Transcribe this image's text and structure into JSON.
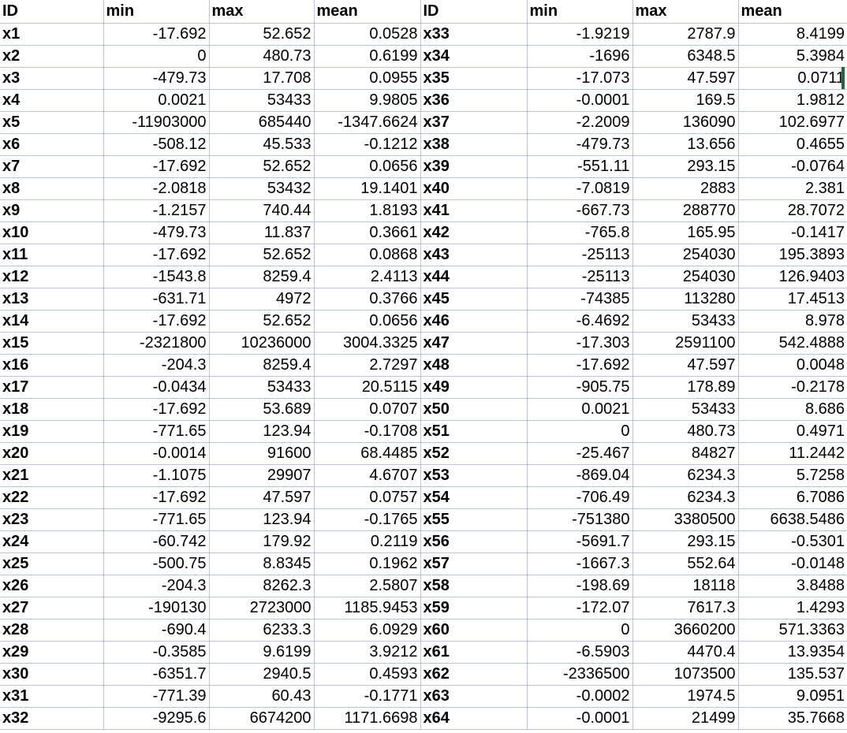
{
  "sheet": {
    "headers": [
      "ID",
      "min",
      "max",
      "mean",
      "ID",
      "min",
      "max",
      "mean"
    ],
    "rows": [
      [
        "x1",
        "-17.692",
        "52.652",
        "0.0528",
        "x33",
        "-1.9219",
        "2787.9",
        "8.4199"
      ],
      [
        "x2",
        "0",
        "480.73",
        "0.6199",
        "x34",
        "-1696",
        "6348.5",
        "5.3984"
      ],
      [
        "x3",
        "-479.73",
        "17.708",
        "0.0955",
        "x35",
        "-17.073",
        "47.597",
        "0.0711"
      ],
      [
        "x4",
        "0.0021",
        "53433",
        "9.9805",
        "x36",
        "-0.0001",
        "169.5",
        "1.9812"
      ],
      [
        "x5",
        "-11903000",
        "685440",
        "-1347.6624",
        "x37",
        "-2.2009",
        "136090",
        "102.6977"
      ],
      [
        "x6",
        "-508.12",
        "45.533",
        "-0.1212",
        "x38",
        "-479.73",
        "13.656",
        "0.4655"
      ],
      [
        "x7",
        "-17.692",
        "52.652",
        "0.0656",
        "x39",
        "-551.11",
        "293.15",
        "-0.0764"
      ],
      [
        "x8",
        "-2.0818",
        "53432",
        "19.1401",
        "x40",
        "-7.0819",
        "2883",
        "2.381"
      ],
      [
        "x9",
        "-1.2157",
        "740.44",
        "1.8193",
        "x41",
        "-667.73",
        "288770",
        "28.7072"
      ],
      [
        "x10",
        "-479.73",
        "11.837",
        "0.3661",
        "x42",
        "-765.8",
        "165.95",
        "-0.1417"
      ],
      [
        "x11",
        "-17.692",
        "52.652",
        "0.0868",
        "x43",
        "-25113",
        "254030",
        "195.3893"
      ],
      [
        "x12",
        "-1543.8",
        "8259.4",
        "2.4113",
        "x44",
        "-25113",
        "254030",
        "126.9403"
      ],
      [
        "x13",
        "-631.71",
        "4972",
        "0.3766",
        "x45",
        "-74385",
        "113280",
        "17.4513"
      ],
      [
        "x14",
        "-17.692",
        "52.652",
        "0.0656",
        "x46",
        "-6.4692",
        "53433",
        "8.978"
      ],
      [
        "x15",
        "-2321800",
        "10236000",
        "3004.3325",
        "x47",
        "-17.303",
        "2591100",
        "542.4888"
      ],
      [
        "x16",
        "-204.3",
        "8259.4",
        "2.7297",
        "x48",
        "-17.692",
        "47.597",
        "0.0048"
      ],
      [
        "x17",
        "-0.0434",
        "53433",
        "20.5115",
        "x49",
        "-905.75",
        "178.89",
        "-0.2178"
      ],
      [
        "x18",
        "-17.692",
        "53.689",
        "0.0707",
        "x50",
        "0.0021",
        "53433",
        "8.686"
      ],
      [
        "x19",
        "-771.65",
        "123.94",
        "-0.1708",
        "x51",
        "0",
        "480.73",
        "0.4971"
      ],
      [
        "x20",
        "-0.0014",
        "91600",
        "68.4485",
        "x52",
        "-25.467",
        "84827",
        "11.2442"
      ],
      [
        "x21",
        "-1.1075",
        "29907",
        "4.6707",
        "x53",
        "-869.04",
        "6234.3",
        "5.7258"
      ],
      [
        "x22",
        "-17.692",
        "47.597",
        "0.0757",
        "x54",
        "-706.49",
        "6234.3",
        "6.7086"
      ],
      [
        "x23",
        "-771.65",
        "123.94",
        "-0.1765",
        "x55",
        "-751380",
        "3380500",
        "6638.5486"
      ],
      [
        "x24",
        "-60.742",
        "179.92",
        "0.2119",
        "x56",
        "-5691.7",
        "293.15",
        "-0.5301"
      ],
      [
        "x25",
        "-500.75",
        "8.8345",
        "0.1962",
        "x57",
        "-1667.3",
        "552.64",
        "-0.0148"
      ],
      [
        "x26",
        "-204.3",
        "8262.3",
        "2.5807",
        "x58",
        "-198.69",
        "18118",
        "3.8488"
      ],
      [
        "x27",
        "-190130",
        "2723000",
        "1185.9453",
        "x59",
        "-172.07",
        "7617.3",
        "1.4293"
      ],
      [
        "x28",
        "-690.4",
        "6233.3",
        "6.0929",
        "x60",
        "0",
        "3660200",
        "571.3363"
      ],
      [
        "x29",
        "-0.3585",
        "9.6199",
        "3.9212",
        "x61",
        "-6.5903",
        "4470.4",
        "13.9354"
      ],
      [
        "x30",
        "-6351.7",
        "2940.5",
        "0.4593",
        "x62",
        "-2336500",
        "1073500",
        "135.537"
      ],
      [
        "x31",
        "-771.39",
        "60.43",
        "-0.1771",
        "x63",
        "-0.0002",
        "1974.5",
        "9.0951"
      ],
      [
        "x32",
        "-9295.6",
        "6674200",
        "1171.6698",
        "x64",
        "-0.0001",
        "21499",
        "35.7668"
      ]
    ]
  }
}
